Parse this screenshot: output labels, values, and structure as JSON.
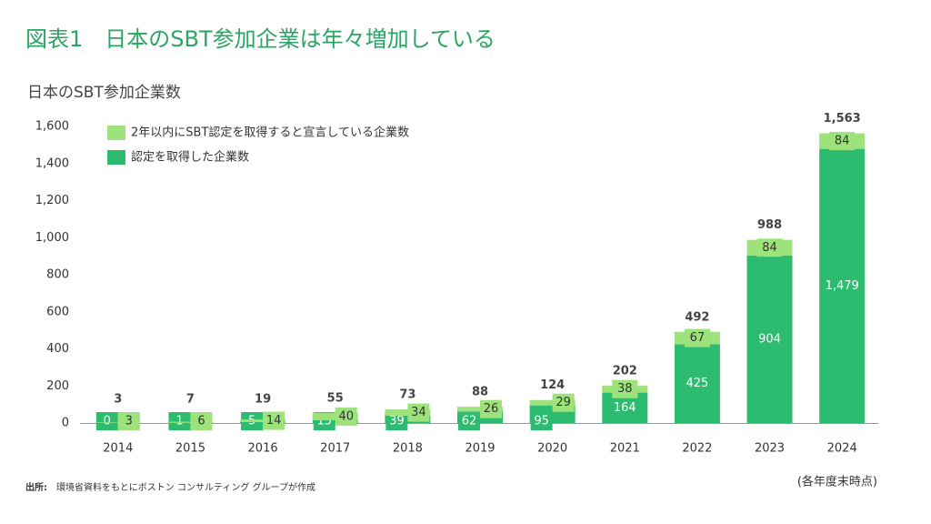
{
  "chart_data": {
    "type": "stacked_bar",
    "title": "図表1　日本のSBT参加企業は年々増加している",
    "subtitle": "日本のSBT参加企業数",
    "categories": [
      "2014",
      "2015",
      "2016",
      "2017",
      "2018",
      "2019",
      "2020",
      "2021",
      "2022",
      "2023",
      "2024"
    ],
    "series": [
      {
        "name": "認定を取得した企業数",
        "color": "#2cbb6f",
        "values": [
          0,
          1,
          5,
          15,
          39,
          62,
          95,
          164,
          425,
          904,
          1479
        ],
        "value_labels": [
          "0",
          "1",
          "5",
          "15",
          "39",
          "62",
          "95",
          "164",
          "425",
          "904",
          "1,479"
        ]
      },
      {
        "name": "2年以内にSBT認定を取得すると宣言している企業数",
        "color": "#9de27a",
        "values": [
          3,
          6,
          14,
          40,
          34,
          26,
          29,
          38,
          67,
          84,
          84
        ]
      }
    ],
    "totals": {
      "values": [
        3,
        7,
        19,
        55,
        73,
        88,
        124,
        202,
        492,
        988,
        1563
      ],
      "value_labels": [
        "3",
        "7",
        "19",
        "55",
        "73",
        "88",
        "124",
        "202",
        "492",
        "988",
        "1,563"
      ]
    },
    "ylim": [
      0,
      1600
    ],
    "yticks": [
      0,
      200,
      400,
      600,
      800,
      {
        "value": 1000,
        "label": "1,000"
      },
      {
        "value": 1200,
        "label": "1,200"
      },
      {
        "value": 1400,
        "label": "1,400"
      },
      {
        "value": 1600,
        "label": "1,600"
      }
    ],
    "grid": false,
    "legend": "top-left",
    "note": "(各年度末時点)",
    "source_label": "出所:",
    "source_text": "環境省資料をもとにボストン コンサルティング グループが作成"
  }
}
